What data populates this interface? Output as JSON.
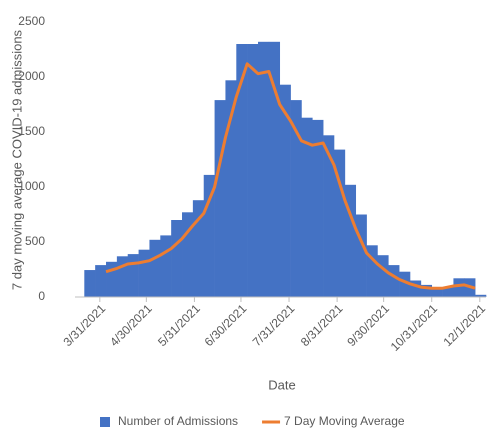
{
  "chart_data": {
    "type": "bar-line",
    "y_label": "7 day moving average COVID-19 admissions",
    "x_label": "Date",
    "x": [
      "3/21/2021",
      "3/28/2021",
      "4/4/2021",
      "4/11/2021",
      "4/18/2021",
      "4/25/2021",
      "5/2/2021",
      "5/9/2021",
      "5/16/2021",
      "5/23/2021",
      "5/30/2021",
      "6/6/2021",
      "6/13/2021",
      "6/20/2021",
      "6/27/2021",
      "7/4/2021",
      "7/11/2021",
      "7/18/2021",
      "7/25/2021",
      "8/1/2021",
      "8/8/2021",
      "8/15/2021",
      "8/22/2021",
      "8/29/2021",
      "9/5/2021",
      "9/12/2021",
      "9/19/2021",
      "9/26/2021",
      "10/3/2021",
      "10/10/2021",
      "10/17/2021",
      "10/24/2021",
      "10/31/2021",
      "11/7/2021",
      "11/14/2021",
      "11/21/2021",
      "11/28/2021"
    ],
    "series": [
      {
        "name": "Number of Admissions",
        "color": "#4472c4",
        "kind": "bar",
        "values": [
          245,
          290,
          320,
          370,
          390,
          430,
          520,
          560,
          700,
          770,
          880,
          1110,
          1790,
          1970,
          2300,
          2300,
          2320,
          2320,
          1930,
          1790,
          1630,
          1610,
          1470,
          1340,
          1020,
          750,
          470,
          380,
          290,
          230,
          150,
          110,
          90,
          90,
          170,
          170,
          20
        ]
      },
      {
        "name": "7 Day Moving Average",
        "color": "#ed7d31",
        "kind": "line",
        "values": [
          null,
          null,
          230,
          260,
          300,
          310,
          330,
          380,
          440,
          530,
          650,
          760,
          1000,
          1450,
          1820,
          2120,
          2030,
          2050,
          1750,
          1600,
          1420,
          1380,
          1400,
          1200,
          880,
          620,
          400,
          300,
          220,
          160,
          120,
          90,
          80,
          80,
          100,
          110,
          80
        ]
      }
    ],
    "xlim": [
      "3/15/2021",
      "12/5/2021"
    ],
    "xticks": [
      "3/31/2021",
      "4/30/2021",
      "5/31/2021",
      "6/30/2021",
      "7/31/2021",
      "8/31/2021",
      "9/30/2021",
      "10/31/2021",
      "12/1/2021"
    ],
    "ylim": [
      0,
      2500
    ],
    "yticks": [
      0,
      500,
      1000,
      1500,
      2000,
      2500
    ],
    "grid": false,
    "legend": "bottom"
  }
}
